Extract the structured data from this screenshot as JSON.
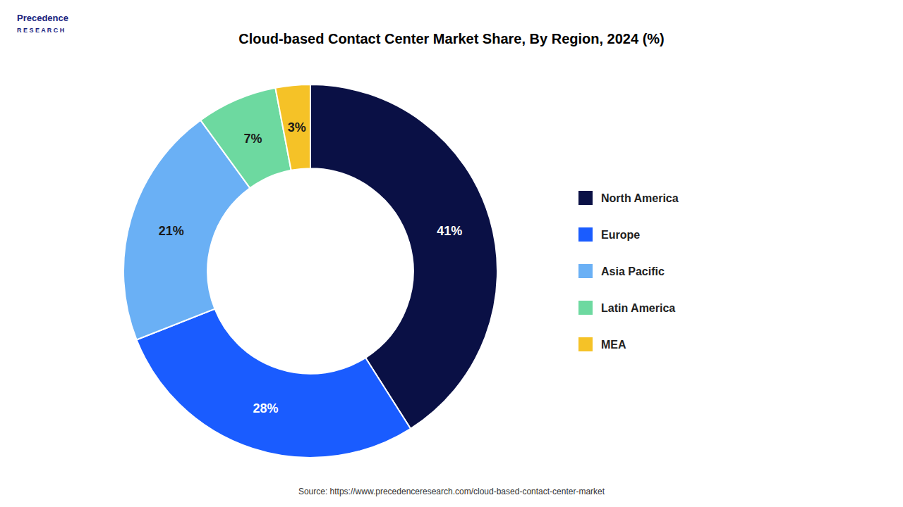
{
  "chart_data": {
    "type": "donut",
    "title": "Cloud-based Contact Center Market Share, By Region, 2024 (%)",
    "categories": [
      "North America",
      "Europe",
      "Asia Pacific",
      "Latin America",
      "MEA"
    ],
    "values": [
      41,
      28,
      21,
      7,
      3
    ],
    "value_labels": [
      "41%",
      "28%",
      "21%",
      "7%",
      "3%"
    ],
    "data_labels": true,
    "colors": [
      "#0a1045",
      "#1a5cff",
      "#6ab0f5",
      "#6dd9a0",
      "#f5c227"
    ],
    "legend": "right",
    "source": "Source: https://www.precedenceresearch.com/cloud-based-contact-center-market",
    "annotations": [
      "Precedence",
      "R E S E A R C H"
    ]
  }
}
